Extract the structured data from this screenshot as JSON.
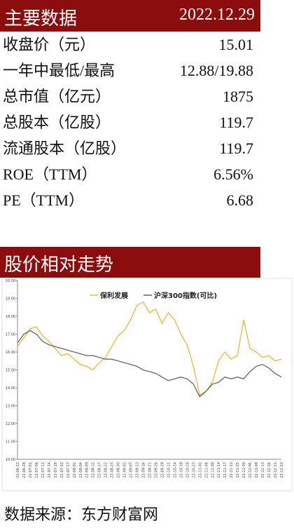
{
  "header": {
    "title": "主要数据",
    "date": "2022.12.29"
  },
  "table": {
    "rows": [
      [
        "收盘价（元）",
        "15.01"
      ],
      [
        "一年中最低/最高",
        "12.88/19.88"
      ],
      [
        "总市值（亿元）",
        "1875"
      ],
      [
        "总股本（亿股）",
        "119.7"
      ],
      [
        "流通股本（亿股）",
        "119.7"
      ],
      [
        "ROE（TTM）",
        "6.56%"
      ],
      [
        "PE（TTM）",
        "6.68"
      ]
    ]
  },
  "section_title": "股价相对走势",
  "chart_data": {
    "type": "line",
    "categories": [
      "22-06-23",
      "22-06-28",
      "22-07-01",
      "22-07-06",
      "22-07-11",
      "22-07-14",
      "22-07-19",
      "22-07-22",
      "22-07-27",
      "22-08-01",
      "22-08-04",
      "22-08-09",
      "22-08-12",
      "22-08-17",
      "22-08-22",
      "22-08-25",
      "22-08-30",
      "22-09-02",
      "22-09-07",
      "22-09-13",
      "22-09-16",
      "22-09-21",
      "22-09-26",
      "22-09-29",
      "22-10-11",
      "22-10-14",
      "22-10-19",
      "22-10-24",
      "22-10-27",
      "22-11-01",
      "22-11-04",
      "22-11-09",
      "22-11-14",
      "22-11-17",
      "22-11-22",
      "22-11-25",
      "22-11-30",
      "22-12-05",
      "22-12-08",
      "22-12-13",
      "22-12-16",
      "22-12-21",
      "22-12-23"
    ],
    "series": [
      {
        "name": "保利发展",
        "color": "#f5b335",
        "values": [
          16.3,
          16.8,
          17.3,
          17.4,
          16.9,
          16.6,
          16.2,
          15.8,
          15.9,
          15.6,
          15.3,
          15.2,
          15.0,
          15.4,
          15.7,
          16.3,
          16.9,
          17.2,
          17.8,
          18.6,
          18.8,
          18.2,
          18.4,
          17.6,
          18.2,
          17.8,
          17.0,
          16.4,
          15.2,
          13.6,
          13.8,
          14.3,
          15.5,
          16.0,
          15.6,
          15.8,
          17.8,
          16.2,
          16.0,
          15.7,
          15.8,
          15.5,
          15.6
        ]
      },
      {
        "name": "沪深300指数(可比)",
        "color": "#666666",
        "values": [
          16.5,
          17.0,
          17.2,
          17.0,
          16.6,
          16.4,
          16.3,
          16.2,
          16.1,
          16.0,
          15.9,
          15.8,
          15.8,
          15.7,
          15.6,
          15.6,
          15.5,
          15.4,
          15.3,
          15.2,
          15.0,
          14.9,
          14.8,
          14.6,
          14.4,
          14.5,
          14.6,
          14.5,
          14.2,
          13.5,
          13.8,
          14.2,
          14.3,
          14.6,
          14.5,
          14.6,
          14.5,
          14.9,
          15.2,
          15.3,
          15.1,
          14.8,
          14.6
        ]
      }
    ],
    "ylim": [
      10,
      20
    ],
    "yticks": [
      {
        "value": 10,
        "label": "10.00"
      },
      {
        "value": 11,
        "label": "11.00"
      },
      {
        "value": 12,
        "label": "12.00"
      },
      {
        "value": 13,
        "label": "13.00"
      },
      {
        "value": 14,
        "label": "14.00"
      },
      {
        "value": 15,
        "label": "15.00"
      },
      {
        "value": 16,
        "label": "16.00"
      },
      {
        "value": 17,
        "label": "17.00"
      },
      {
        "value": 18,
        "label": "18.00"
      },
      {
        "value": 19,
        "label": "19.00"
      },
      {
        "value": 20,
        "label": "20.00"
      }
    ]
  },
  "source": "数据来源：东方财富网"
}
